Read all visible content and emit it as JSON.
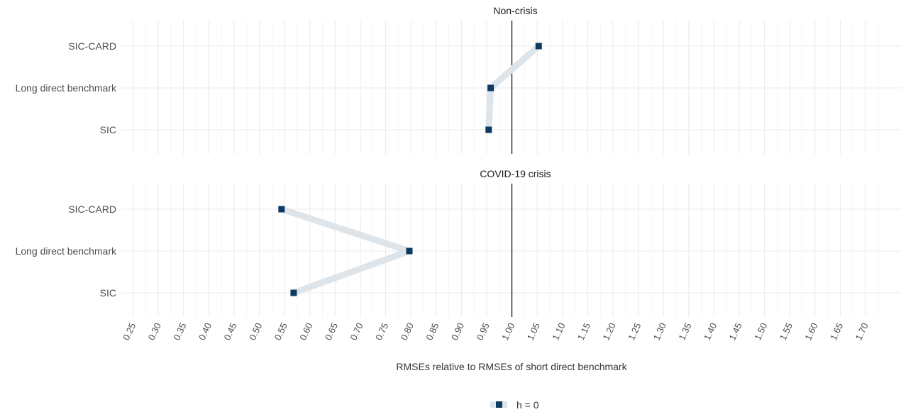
{
  "chart_data": {
    "type": "line",
    "xlabel": "RMSEs relative to RMSEs of short direct benchmark",
    "xlim": [
      0.23,
      1.74
    ],
    "x_ticks": [
      "0.25",
      "0.30",
      "0.35",
      "0.40",
      "0.45",
      "0.50",
      "0.55",
      "0.60",
      "0.65",
      "0.70",
      "0.75",
      "0.80",
      "0.85",
      "0.90",
      "0.95",
      "1.00",
      "1.05",
      "1.10",
      "1.15",
      "1.20",
      "1.25",
      "1.30",
      "1.35",
      "1.40",
      "1.45",
      "1.50",
      "1.55",
      "1.60",
      "1.65",
      "1.70"
    ],
    "categories": [
      "SIC-CARD",
      "Long direct benchmark",
      "SIC"
    ],
    "reference_line": 1.0,
    "grid": true,
    "legend_position": "bottom",
    "colors": {
      "point": "#0d3a63",
      "path": "#dde4ea",
      "refline": "#000000",
      "grid": "#ebebeb"
    },
    "panels": [
      {
        "title": "Non-crisis",
        "series": [
          {
            "name": "h = 0",
            "points": [
              {
                "category": "SIC-CARD",
                "value": 1.053
              },
              {
                "category": "Long direct benchmark",
                "value": 0.958
              },
              {
                "category": "SIC",
                "value": 0.954
              }
            ]
          }
        ]
      },
      {
        "title": "COVID-19 crisis",
        "series": [
          {
            "name": "h = 0",
            "points": [
              {
                "category": "SIC-CARD",
                "value": 0.544
              },
              {
                "category": "Long direct benchmark",
                "value": 0.797
              },
              {
                "category": "SIC",
                "value": 0.568
              }
            ]
          }
        ]
      }
    ]
  }
}
